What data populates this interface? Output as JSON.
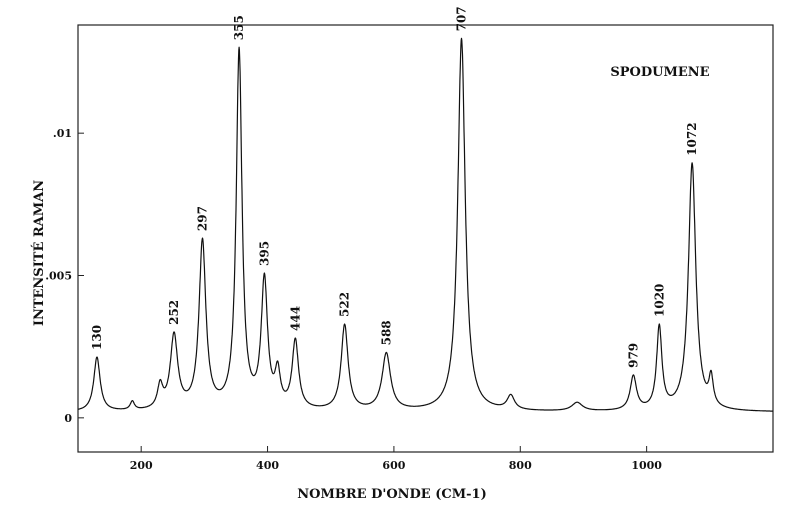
{
  "chart_data": {
    "type": "line",
    "title": "SPODUMENE",
    "xlabel": "NOMBRE D'ONDE (CM-1)",
    "ylabel": "INTENSITÉ RAMAN",
    "xlim": [
      100,
      1200
    ],
    "ylim": [
      -0.0012,
      0.0138
    ],
    "x_ticks": [
      200,
      400,
      600,
      800,
      1000
    ],
    "x_tick_labels": [
      "200",
      "400",
      "600",
      "800",
      "1000"
    ],
    "y_ticks": [
      0,
      0.005,
      0.01
    ],
    "y_tick_labels": [
      "0",
      ".005",
      ".01"
    ],
    "grid": false,
    "legend": "none",
    "colors": {
      "line": "#111111",
      "frame": "#222222"
    },
    "baseline": 0.0002,
    "peaks": [
      {
        "x": 130,
        "label": "130",
        "intensity": 0.0019,
        "width": 6
      },
      {
        "x": 186,
        "label": "",
        "intensity": 0.0003,
        "width": 4
      },
      {
        "x": 230,
        "label": "",
        "intensity": 0.0008,
        "width": 5
      },
      {
        "x": 252,
        "label": "252",
        "intensity": 0.0026,
        "width": 7
      },
      {
        "x": 297,
        "label": "297",
        "intensity": 0.0059,
        "width": 6.5
      },
      {
        "x": 355,
        "label": "355",
        "intensity": 0.0126,
        "width": 5.5
      },
      {
        "x": 395,
        "label": "395",
        "intensity": 0.0045,
        "width": 6
      },
      {
        "x": 416,
        "label": "",
        "intensity": 0.0012,
        "width": 5
      },
      {
        "x": 444,
        "label": "444",
        "intensity": 0.0024,
        "width": 6
      },
      {
        "x": 522,
        "label": "522",
        "intensity": 0.003,
        "width": 6.5
      },
      {
        "x": 588,
        "label": "588",
        "intensity": 0.002,
        "width": 8
      },
      {
        "x": 707,
        "label": "707",
        "intensity": 0.0131,
        "width": 7
      },
      {
        "x": 785,
        "label": "",
        "intensity": 0.0005,
        "width": 7
      },
      {
        "x": 890,
        "label": "",
        "intensity": 0.0003,
        "width": 10
      },
      {
        "x": 979,
        "label": "979",
        "intensity": 0.0012,
        "width": 6
      },
      {
        "x": 1020,
        "label": "1020",
        "intensity": 0.0029,
        "width": 5
      },
      {
        "x": 1072,
        "label": "1072",
        "intensity": 0.0087,
        "width": 7
      },
      {
        "x": 1102,
        "label": "",
        "intensity": 0.001,
        "width": 4
      }
    ]
  }
}
